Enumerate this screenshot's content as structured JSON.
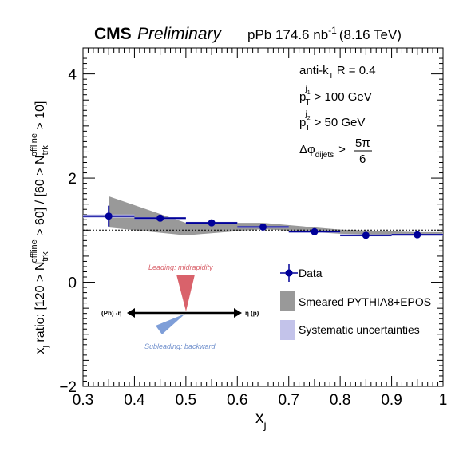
{
  "header": {
    "experiment": "CMS",
    "status": "Preliminary",
    "dataset": "pPb 174.6 nb",
    "lumi_exp": "-1",
    "energy": "(8.16 TeV)"
  },
  "cuts": {
    "algo": "anti-k",
    "algo_sub": "T",
    "radius": "R = 0.4",
    "pt1_sub": "T",
    "pt1_sup": "j",
    "pt1_sup_sub": "1",
    "pt1_cut": "> 100 GeV",
    "pt2_sub": "T",
    "pt2_sup": "j",
    "pt2_sup_sub": "2",
    "pt2_cut": "> 50 GeV",
    "dphi_sub": "dijets",
    "dphi_gt": ">",
    "dphi_num": "5π",
    "dphi_den": "6"
  },
  "inset": {
    "leading_label": "Leading: midrapidity",
    "subleading_label": "Subleading: backward",
    "left_label": "(Pb) -η",
    "right_label": "η (p)",
    "leading_color": "#d9626b",
    "subleading_color": "#7e9ed8"
  },
  "chart_data": {
    "type": "scatter",
    "title": "",
    "xlabel": "x",
    "xlabel_sub": "j",
    "ylabel": "x_j ratio: [120 > N_trk^offline > 60] / [60 > N_trk^offline > 10]",
    "xlim": [
      0.3,
      1.0
    ],
    "ylim": [
      -2,
      4.5
    ],
    "x_ticks": [
      "0.3",
      "0.4",
      "0.5",
      "0.6",
      "0.7",
      "0.8",
      "0.9",
      "1"
    ],
    "y_ticks": [
      "−2",
      "0",
      "2",
      "4"
    ],
    "reference_line": 1.0,
    "legend": {
      "placement": "bottom-right",
      "entries": [
        "Data",
        "Smeared PYTHIA8+EPOS",
        "Systematic uncertainties"
      ]
    },
    "series": [
      {
        "name": "Data",
        "color": "#000099",
        "x": [
          0.35,
          0.45,
          0.55,
          0.65,
          0.75,
          0.85,
          0.95
        ],
        "y": [
          1.27,
          1.23,
          1.14,
          1.06,
          0.97,
          0.9,
          0.91
        ],
        "xerr": [
          0.05,
          0.05,
          0.05,
          0.05,
          0.05,
          0.05,
          0.05
        ],
        "yerr": [
          0.2,
          0.05,
          0.04,
          0.03,
          0.02,
          0.02,
          0.02
        ],
        "syst": [
          0.03,
          0.02,
          0.02,
          0.02,
          0.02,
          0.02,
          0.02
        ]
      },
      {
        "name": "Smeared PYTHIA8+EPOS",
        "color": "#999999",
        "x": [
          0.35,
          0.5,
          0.65,
          0.8,
          0.95,
          1.0
        ],
        "y": [
          1.35,
          1.02,
          1.08,
          0.97,
          0.93,
          0.93
        ],
        "band": [
          0.3,
          0.12,
          0.06,
          0.04,
          0.03,
          0.03
        ]
      }
    ],
    "syst_color": "#c3c3ea"
  }
}
